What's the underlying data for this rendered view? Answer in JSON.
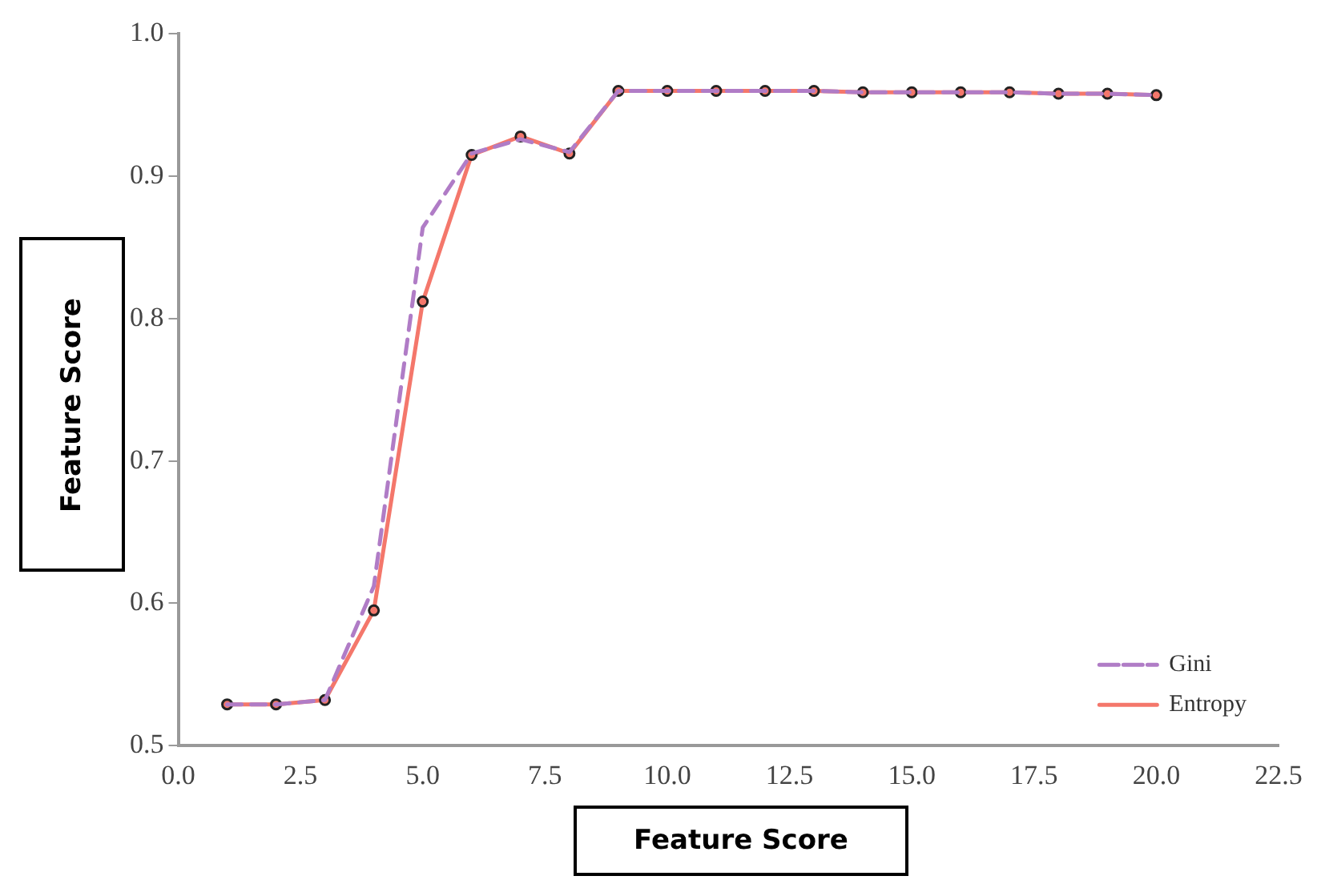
{
  "chart_data": {
    "type": "line",
    "xlabel": "Feature Score",
    "ylabel": "Feature Score",
    "x": [
      1,
      2,
      3,
      4,
      5,
      6,
      7,
      8,
      9,
      10,
      11,
      12,
      13,
      14,
      15,
      16,
      17,
      18,
      19,
      20
    ],
    "series": [
      {
        "name": "Gini",
        "color": "#b07cc6",
        "line_style": "dashed",
        "marker": "none",
        "values": [
          0.529,
          0.529,
          0.532,
          0.612,
          0.864,
          0.916,
          0.926,
          0.917,
          0.96,
          0.96,
          0.96,
          0.96,
          0.96,
          0.959,
          0.959,
          0.959,
          0.959,
          0.958,
          0.958,
          0.957
        ]
      },
      {
        "name": "Entropy",
        "color": "#f4776b",
        "line_style": "solid",
        "marker": "circle",
        "values": [
          0.529,
          0.529,
          0.532,
          0.595,
          0.812,
          0.915,
          0.928,
          0.916,
          0.96,
          0.96,
          0.96,
          0.96,
          0.96,
          0.959,
          0.959,
          0.959,
          0.959,
          0.958,
          0.958,
          0.957
        ]
      }
    ],
    "xlim": [
      0,
      22.5
    ],
    "xticks": [
      {
        "value": 0,
        "label": "0.0"
      },
      {
        "value": 2.5,
        "label": "2.5"
      },
      {
        "value": 5,
        "label": "5.0"
      },
      {
        "value": 7.5,
        "label": "7.5"
      },
      {
        "value": 10,
        "label": "10.0"
      },
      {
        "value": 12.5,
        "label": "12.5"
      },
      {
        "value": 15,
        "label": "15.0"
      },
      {
        "value": 17.5,
        "label": "17.5"
      },
      {
        "value": 20,
        "label": "20.0"
      },
      {
        "value": 22.5,
        "label": "22.5"
      }
    ],
    "ylim": [
      0.5,
      1.0
    ],
    "yticks": [
      0.5,
      0.6,
      0.7,
      0.8,
      0.9,
      {
        "value": 1.0,
        "label": "1.0"
      }
    ],
    "grid": false,
    "legend": "bottom right"
  }
}
